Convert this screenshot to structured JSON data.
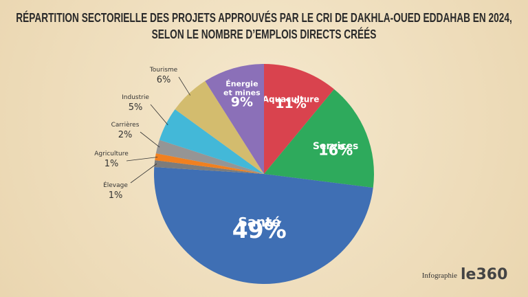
{
  "chart_data": {
    "type": "pie",
    "title": "RÉPARTITION SECTORIELLE DES PROJETS APPROUVÉS PAR LE CRI DE DAKHLA-OUED EDDAHAB EN 2024, SELON LE NOMBRE D’EMPLOIS DIRECTS CRÉÉS",
    "categories": [
      "Aquaculture",
      "Services",
      "Santé",
      "Élevage",
      "Agriculture",
      "Carrières",
      "Industrie",
      "Tourisme",
      "Énergie et mines"
    ],
    "values": [
      11,
      16,
      49,
      1,
      1,
      2,
      5,
      6,
      9
    ],
    "value_labels": [
      "11%",
      "16%",
      "49%",
      "1%",
      "1%",
      "2%",
      "5%",
      "6%",
      "9%"
    ],
    "colors": [
      "#d9434e",
      "#2eaa5c",
      "#3f6fb4",
      "#7c7c7c",
      "#f08020",
      "#959595",
      "#43b8d8",
      "#d3bc6e",
      "#8b70b8"
    ],
    "source": "Infographie",
    "logo": "le360"
  }
}
